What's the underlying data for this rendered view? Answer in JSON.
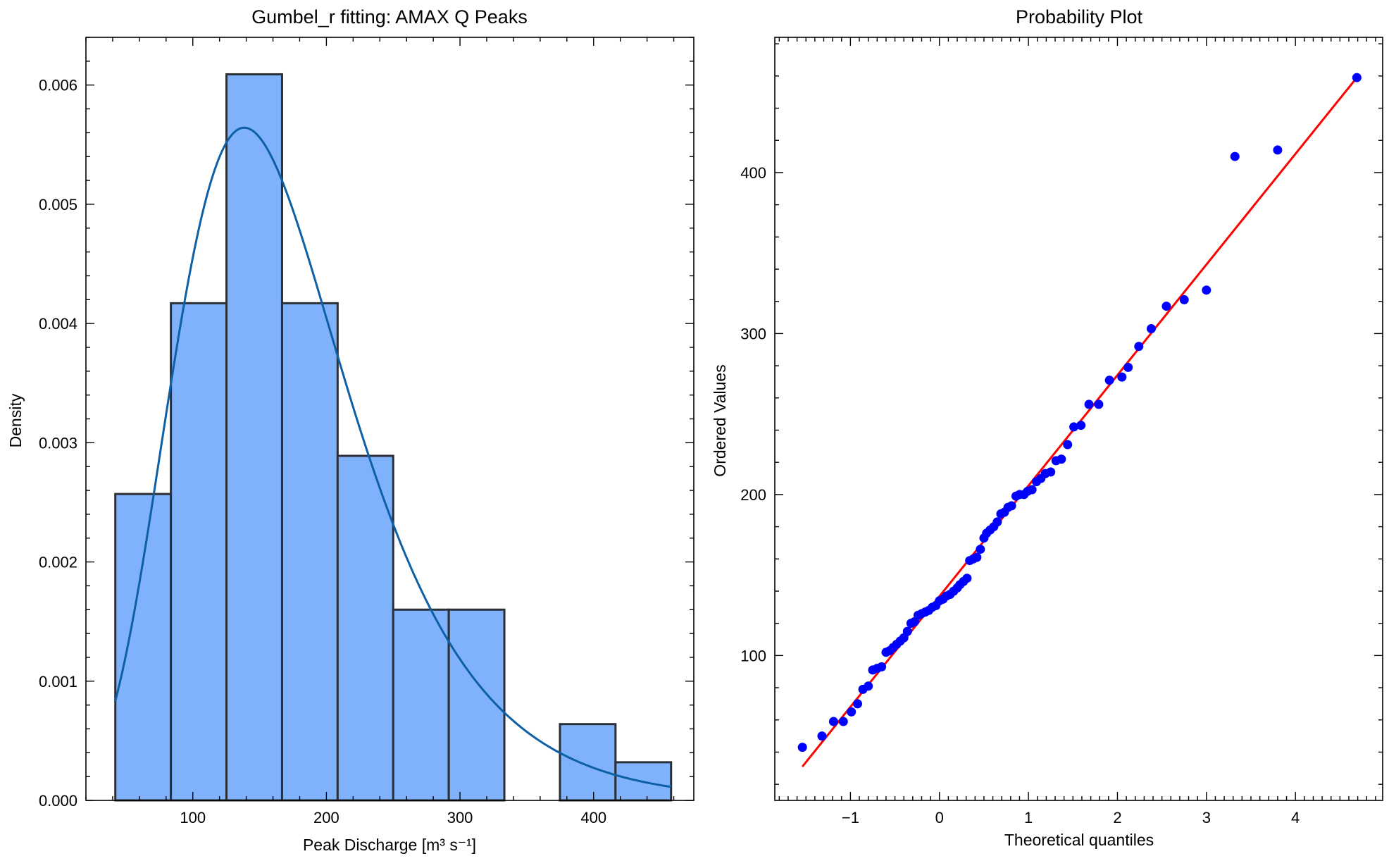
{
  "chart_data": [
    {
      "type": "bar",
      "title": "Gumbel_r fitting: AMAX Q Peaks",
      "xlabel": "Peak Discharge [m³ s⁻¹]",
      "ylabel": "Density",
      "xlim": [
        20,
        475
      ],
      "ylim": [
        0,
        0.0064
      ],
      "xticks": [
        100,
        200,
        300,
        400
      ],
      "xtick_labels": [
        "100",
        "200",
        "300",
        "400"
      ],
      "yticks": [
        0,
        0.001,
        0.002,
        0.003,
        0.004,
        0.005,
        0.006
      ],
      "ytick_labels": [
        "0.000",
        "0.001",
        "0.002",
        "0.003",
        "0.004",
        "0.005",
        "0.006"
      ],
      "grid": false,
      "bar_color": "#7fb2fb",
      "bar_edge_color": "#2b2f36",
      "bins": [
        {
          "x0": 42,
          "x1": 83.6,
          "density": 0.00257
        },
        {
          "x0": 83.6,
          "x1": 125.2,
          "density": 0.00417
        },
        {
          "x0": 125.2,
          "x1": 166.8,
          "density": 0.00609
        },
        {
          "x0": 166.8,
          "x1": 208.4,
          "density": 0.00417
        },
        {
          "x0": 208.4,
          "x1": 250.0,
          "density": 0.00289
        },
        {
          "x0": 250.0,
          "x1": 291.6,
          "density": 0.0016
        },
        {
          "x0": 291.6,
          "x1": 333.2,
          "density": 0.0016
        },
        {
          "x0": 333.2,
          "x1": 374.8,
          "density": 0
        },
        {
          "x0": 374.8,
          "x1": 416.4,
          "density": 0.00064
        },
        {
          "x0": 416.4,
          "x1": 458,
          "density": 0.00032
        }
      ],
      "fit_curve": {
        "distribution": "gumbel_r",
        "loc": 138.5,
        "scale": 65.2,
        "x_range": [
          42,
          458
        ],
        "color": "#0d5fa6"
      }
    },
    {
      "type": "scatter",
      "title": "Probability Plot",
      "xlabel": "Theoretical quantiles",
      "ylabel": "Ordered Values",
      "xlim": [
        -1.85,
        4.98
      ],
      "ylim": [
        10,
        484
      ],
      "xticks": [
        -1,
        0,
        1,
        2,
        3,
        4
      ],
      "xtick_labels": [
        "−1",
        "0",
        "1",
        "2",
        "3",
        "4"
      ],
      "yticks": [
        100,
        200,
        300,
        400
      ],
      "ytick_labels": [
        "100",
        "200",
        "300",
        "400"
      ],
      "grid": false,
      "point_color": "#0000ff",
      "line_color": "#ff0000",
      "fit_line": {
        "x": [
          -1.54,
          4.69
        ],
        "y": [
          31,
          459
        ]
      },
      "points": [
        [
          -1.54,
          43
        ],
        [
          -1.32,
          50
        ],
        [
          -1.19,
          59
        ],
        [
          -1.08,
          59
        ],
        [
          -0.99,
          65
        ],
        [
          -0.92,
          70
        ],
        [
          -0.86,
          79
        ],
        [
          -0.8,
          81
        ],
        [
          -0.75,
          91
        ],
        [
          -0.7,
          92
        ],
        [
          -0.65,
          93
        ],
        [
          -0.6,
          102
        ],
        [
          -0.56,
          103
        ],
        [
          -0.52,
          105
        ],
        [
          -0.48,
          107
        ],
        [
          -0.44,
          109
        ],
        [
          -0.4,
          111
        ],
        [
          -0.36,
          115
        ],
        [
          -0.32,
          120
        ],
        [
          -0.28,
          121
        ],
        [
          -0.24,
          125
        ],
        [
          -0.2,
          126
        ],
        [
          -0.16,
          127
        ],
        [
          -0.12,
          128
        ],
        [
          -0.08,
          130
        ],
        [
          -0.04,
          131
        ],
        [
          0.0,
          134
        ],
        [
          0.04,
          135
        ],
        [
          0.08,
          137
        ],
        [
          0.12,
          138
        ],
        [
          0.16,
          140
        ],
        [
          0.2,
          142
        ],
        [
          0.23,
          144
        ],
        [
          0.27,
          146
        ],
        [
          0.31,
          148
        ],
        [
          0.34,
          159
        ],
        [
          0.38,
          160
        ],
        [
          0.42,
          161
        ],
        [
          0.46,
          166
        ],
        [
          0.5,
          173
        ],
        [
          0.53,
          176
        ],
        [
          0.57,
          178
        ],
        [
          0.61,
          180
        ],
        [
          0.65,
          183
        ],
        [
          0.69,
          188
        ],
        [
          0.73,
          189
        ],
        [
          0.77,
          192
        ],
        [
          0.81,
          193
        ],
        [
          0.86,
          199
        ],
        [
          0.9,
          200
        ],
        [
          0.95,
          200
        ],
        [
          0.99,
          202
        ],
        [
          1.04,
          203
        ],
        [
          1.09,
          208
        ],
        [
          1.14,
          210
        ],
        [
          1.19,
          213
        ],
        [
          1.25,
          214
        ],
        [
          1.31,
          221
        ],
        [
          1.37,
          222
        ],
        [
          1.44,
          231
        ],
        [
          1.51,
          242
        ],
        [
          1.59,
          243
        ],
        [
          1.68,
          256
        ],
        [
          1.79,
          256
        ],
        [
          1.91,
          271
        ],
        [
          2.05,
          273
        ],
        [
          2.12,
          279
        ],
        [
          2.24,
          292
        ],
        [
          2.38,
          303
        ],
        [
          2.55,
          317
        ],
        [
          2.75,
          321
        ],
        [
          3.0,
          327
        ],
        [
          3.32,
          410
        ],
        [
          3.8,
          414
        ],
        [
          4.69,
          459
        ]
      ]
    }
  ]
}
